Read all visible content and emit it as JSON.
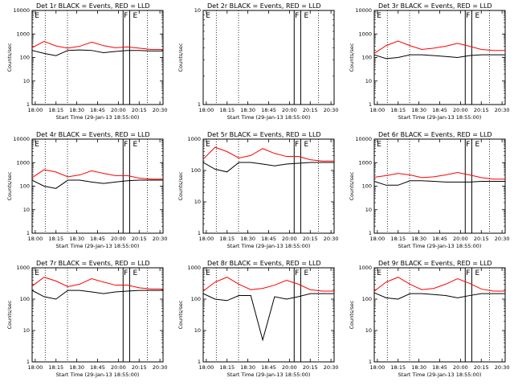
{
  "chart_data": [
    {
      "type": "line",
      "title": "Det 1r BLACK = Events, RED = LLD",
      "xlabel": "Start Time (29-Jan-13 18:55:00)",
      "ylabel": "Counts/sec",
      "xtick_labels": [
        "18:00",
        "18:15",
        "18:30",
        "18:45",
        "20:00",
        "20:15",
        "20:30"
      ],
      "ytick_labels": [
        "1",
        "10",
        "100",
        "1000",
        "10000"
      ],
      "yscale": "log",
      "ylim": [
        1,
        10000
      ],
      "series": [
        {
          "color": "#ff0000",
          "x": [
            0,
            10,
            20,
            30,
            40,
            50,
            60,
            70,
            80,
            90,
            100,
            110
          ],
          "values": [
            260,
            480,
            310,
            250,
            300,
            450,
            320,
            260,
            280,
            250,
            220,
            220
          ]
        },
        {
          "color": "#000000",
          "x": [
            0,
            10,
            20,
            30,
            40,
            50,
            60,
            70,
            80,
            90,
            100,
            110
          ],
          "values": [
            200,
            150,
            120,
            200,
            210,
            200,
            160,
            180,
            200,
            200,
            190,
            190
          ]
        }
      ],
      "markers": [
        "E",
        "F",
        "E"
      ],
      "grid": false
    },
    {
      "type": "line",
      "title": "Det 2r BLACK = Events, RED = LLD",
      "xlabel": "Start Time (29-Jan-13 18:55:00)",
      "ylabel": "Counts/sec",
      "xtick_labels": [
        "18:00",
        "18:15",
        "18:30",
        "18:45",
        "20:00",
        "20:15",
        "20:30"
      ],
      "ytick_labels": [
        "1",
        "10"
      ],
      "yscale": "log",
      "ylim": [
        1,
        10
      ],
      "series": [],
      "markers": [
        "E",
        "F",
        "E"
      ],
      "grid": false
    },
    {
      "type": "line",
      "title": "Det 3r BLACK = Events, RED = LLD",
      "xlabel": "Start Time (29-Jan-13 18:55:00)",
      "ylabel": "Counts/sec",
      "xtick_labels": [
        "18:00",
        "18:15",
        "18:30",
        "18:45",
        "20:00",
        "20:15",
        "20:30"
      ],
      "ytick_labels": [
        "1",
        "10",
        "100",
        "1000",
        "10000"
      ],
      "yscale": "log",
      "ylim": [
        1,
        10000
      ],
      "series": [
        {
          "color": "#ff0000",
          "x": [
            0,
            10,
            20,
            30,
            40,
            50,
            60,
            70,
            80,
            90,
            100,
            110
          ],
          "values": [
            150,
            320,
            500,
            320,
            220,
            250,
            300,
            400,
            300,
            220,
            200,
            200
          ]
        },
        {
          "color": "#000000",
          "x": [
            0,
            10,
            20,
            30,
            40,
            50,
            60,
            70,
            80,
            90,
            100,
            110
          ],
          "values": [
            130,
            90,
            100,
            130,
            130,
            120,
            110,
            100,
            120,
            130,
            130,
            130
          ]
        }
      ],
      "markers": [
        "E",
        "F",
        "E"
      ],
      "grid": false
    },
    {
      "type": "line",
      "title": "Det 4r BLACK = Events, RED = LLD",
      "xlabel": "Start Time (29-Jan-13 18:55:00)",
      "ylabel": "Counts/sec",
      "xtick_labels": [
        "18:00",
        "18:15",
        "18:30",
        "18:45",
        "20:00",
        "20:15",
        "20:30"
      ],
      "ytick_labels": [
        "1",
        "10",
        "100",
        "1000",
        "10000"
      ],
      "yscale": "log",
      "ylim": [
        1,
        10000
      ],
      "series": [
        {
          "color": "#ff0000",
          "x": [
            0,
            10,
            20,
            30,
            40,
            50,
            60,
            70,
            80,
            90,
            100,
            110
          ],
          "values": [
            230,
            500,
            400,
            250,
            300,
            450,
            350,
            280,
            280,
            220,
            200,
            200
          ]
        },
        {
          "color": "#000000",
          "x": [
            0,
            10,
            20,
            30,
            40,
            50,
            60,
            70,
            80,
            90,
            100,
            110
          ],
          "values": [
            180,
            100,
            80,
            180,
            180,
            150,
            130,
            150,
            170,
            180,
            180,
            180
          ]
        }
      ],
      "markers": [
        "E",
        "F",
        "E"
      ],
      "grid": false
    },
    {
      "type": "line",
      "title": "Det 5r BLACK = Events, RED = LLD",
      "xlabel": "Start Time (29-Jan-13 18:55:00)",
      "ylabel": "Counts/sec",
      "xtick_labels": [
        "18:00",
        "18:15",
        "18:30",
        "18:45",
        "20:00",
        "20:15",
        "20:30"
      ],
      "ytick_labels": [
        "1",
        "10",
        "100",
        "1000"
      ],
      "yscale": "log",
      "ylim": [
        1,
        1000
      ],
      "series": [
        {
          "color": "#ff0000",
          "x": [
            0,
            10,
            20,
            30,
            40,
            50,
            60,
            70,
            80,
            90,
            100,
            110
          ],
          "values": [
            230,
            550,
            400,
            250,
            300,
            500,
            350,
            280,
            280,
            220,
            200,
            200
          ]
        },
        {
          "color": "#000000",
          "x": [
            0,
            10,
            20,
            30,
            40,
            50,
            60,
            70,
            80,
            90,
            100,
            110
          ],
          "values": [
            180,
            110,
            90,
            180,
            180,
            160,
            140,
            160,
            170,
            180,
            180,
            180
          ]
        }
      ],
      "markers": [
        "E",
        "F",
        "E"
      ],
      "grid": false
    },
    {
      "type": "line",
      "title": "Det 6r BLACK = Events, RED = LLD",
      "xlabel": "Start Time (29-Jan-13 18:55:00)",
      "ylabel": "Counts/sec",
      "xtick_labels": [
        "18:00",
        "18:15",
        "18:30",
        "18:45",
        "20:00",
        "20:15",
        "20:30"
      ],
      "ytick_labels": [
        "1",
        "10",
        "100",
        "1000",
        "10000"
      ],
      "yscale": "log",
      "ylim": [
        1,
        10000
      ],
      "series": [
        {
          "color": "#ff0000",
          "x": [
            0,
            10,
            20,
            30,
            40,
            50,
            60,
            70,
            80,
            90,
            100,
            110
          ],
          "values": [
            240,
            280,
            350,
            300,
            230,
            250,
            300,
            380,
            300,
            230,
            200,
            200
          ]
        },
        {
          "color": "#000000",
          "x": [
            0,
            10,
            20,
            30,
            40,
            50,
            60,
            70,
            80,
            90,
            100,
            110
          ],
          "values": [
            160,
            110,
            110,
            170,
            170,
            160,
            150,
            150,
            150,
            160,
            160,
            160
          ]
        }
      ],
      "markers": [
        "E",
        "F",
        "E"
      ],
      "grid": false
    },
    {
      "type": "line",
      "title": "Det 7r BLACK = Events, RED = LLD",
      "xlabel": "Start Time (29-Jan-13 18:55:00)",
      "ylabel": "Counts/sec",
      "xtick_labels": [
        "18:00",
        "18:15",
        "18:30",
        "18:45",
        "20:00",
        "20:15",
        "20:30"
      ],
      "ytick_labels": [
        "1",
        "10",
        "100",
        "1000"
      ],
      "yscale": "log",
      "ylim": [
        1,
        1000
      ],
      "series": [
        {
          "color": "#ff0000",
          "x": [
            0,
            10,
            20,
            30,
            40,
            50,
            60,
            70,
            80,
            90,
            100,
            110
          ],
          "values": [
            260,
            500,
            380,
            250,
            300,
            450,
            350,
            280,
            280,
            230,
            210,
            210
          ]
        },
        {
          "color": "#000000",
          "x": [
            0,
            10,
            20,
            30,
            40,
            50,
            60,
            70,
            80,
            90,
            100,
            110
          ],
          "values": [
            190,
            120,
            100,
            190,
            190,
            170,
            150,
            170,
            180,
            190,
            190,
            190
          ]
        }
      ],
      "markers": [
        "E",
        "F",
        "E"
      ],
      "grid": false
    },
    {
      "type": "line",
      "title": "Det 8r BLACK = Events, RED = LLD",
      "xlabel": "Start Time (29-Jan-13 18:55:00)",
      "ylabel": "Counts/sec",
      "xtick_labels": [
        "18:00",
        "18:15",
        "18:30",
        "18:45",
        "20:00",
        "20:15",
        "20:30"
      ],
      "ytick_labels": [
        "1",
        "10",
        "100",
        "1000"
      ],
      "yscale": "log",
      "ylim": [
        1,
        1000
      ],
      "series": [
        {
          "color": "#ff0000",
          "x": [
            0,
            10,
            20,
            30,
            40,
            50,
            60,
            70,
            80,
            90,
            100,
            110
          ],
          "values": [
            180,
            350,
            500,
            300,
            200,
            220,
            280,
            400,
            300,
            200,
            180,
            180
          ]
        },
        {
          "color": "#000000",
          "x": [
            0,
            10,
            20,
            30,
            40,
            50,
            60,
            70,
            80,
            90,
            100,
            110
          ],
          "values": [
            150,
            100,
            90,
            130,
            130,
            5,
            120,
            100,
            120,
            150,
            150,
            150
          ]
        }
      ],
      "markers": [
        "E",
        "F",
        "E"
      ],
      "grid": false
    },
    {
      "type": "line",
      "title": "Det 9r BLACK = Events, RED = LLD",
      "xlabel": "Start Time (29-Jan-13 18:55:00)",
      "ylabel": "Counts/sec",
      "xtick_labels": [
        "18:00",
        "18:15",
        "18:30",
        "18:45",
        "20:00",
        "20:15",
        "20:30"
      ],
      "ytick_labels": [
        "1",
        "10",
        "100",
        "1000"
      ],
      "yscale": "log",
      "ylim": [
        1,
        1000
      ],
      "series": [
        {
          "color": "#ff0000",
          "x": [
            0,
            10,
            20,
            30,
            40,
            50,
            60,
            70,
            80,
            90,
            100,
            110
          ],
          "values": [
            180,
            350,
            500,
            300,
            200,
            220,
            300,
            450,
            320,
            210,
            180,
            180
          ]
        },
        {
          "color": "#000000",
          "x": [
            0,
            10,
            20,
            30,
            40,
            50,
            60,
            70,
            80,
            90,
            100,
            110
          ],
          "values": [
            160,
            110,
            100,
            150,
            150,
            140,
            130,
            110,
            130,
            150,
            150,
            150
          ]
        }
      ],
      "markers": [
        "E",
        "F",
        "E"
      ],
      "grid": false
    }
  ]
}
